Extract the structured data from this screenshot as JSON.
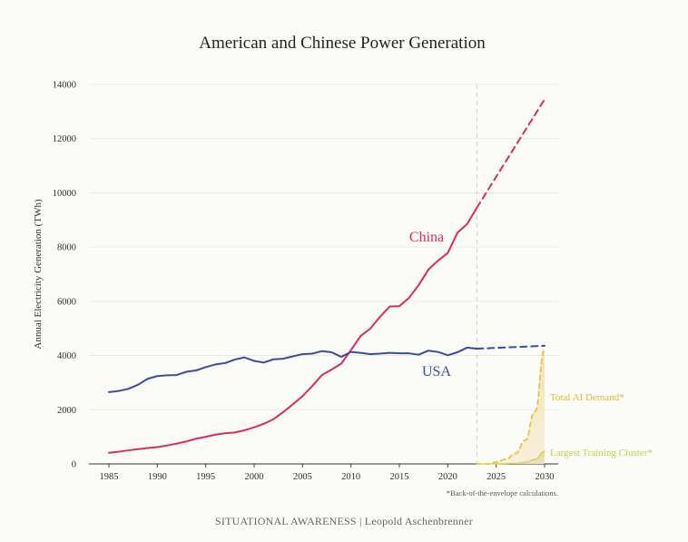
{
  "chart_data": {
    "type": "line",
    "title": "American and Chinese Power Generation",
    "xlabel": "",
    "ylabel": "Annual Electricity Generation (TWh)",
    "xlim": [
      1985,
      2030
    ],
    "ylim": [
      0,
      14000
    ],
    "x_ticks": [
      1985,
      1990,
      1995,
      2000,
      2005,
      2010,
      2015,
      2020,
      2025,
      2030
    ],
    "y_ticks": [
      0,
      2000,
      4000,
      6000,
      8000,
      10000,
      12000,
      14000
    ],
    "grid": "horizontal",
    "projection_start_year": 2023,
    "series": [
      {
        "name": "China",
        "label": "China",
        "color": "#d62e5c",
        "style": "solid",
        "x": [
          1985,
          1986,
          1987,
          1988,
          1989,
          1990,
          1991,
          1992,
          1993,
          1994,
          1995,
          1996,
          1997,
          1998,
          1999,
          2000,
          2001,
          2002,
          2003,
          2004,
          2005,
          2006,
          2007,
          2008,
          2009,
          2010,
          2011,
          2012,
          2013,
          2014,
          2015,
          2016,
          2017,
          2018,
          2019,
          2020,
          2021,
          2022,
          2023
        ],
        "values": [
          410,
          450,
          500,
          545,
          585,
          620,
          680,
          750,
          830,
          930,
          1000,
          1080,
          1130,
          1160,
          1240,
          1350,
          1480,
          1650,
          1910,
          2200,
          2500,
          2870,
          3280,
          3480,
          3700,
          4200,
          4720,
          4990,
          5430,
          5810,
          5820,
          6130,
          6600,
          7170,
          7500,
          7780,
          8530,
          8850,
          9450
        ]
      },
      {
        "name": "China projection",
        "label": "",
        "color": "#d62e5c",
        "style": "dashed",
        "x": [
          2023,
          2030
        ],
        "values": [
          9450,
          13450
        ]
      },
      {
        "name": "USA",
        "label": "USA",
        "color": "#3a4d9c",
        "style": "solid",
        "x": [
          1985,
          1986,
          1987,
          1988,
          1989,
          1990,
          1991,
          1992,
          1993,
          1994,
          1995,
          1996,
          1997,
          1998,
          1999,
          2000,
          2001,
          2002,
          2003,
          2004,
          2005,
          2006,
          2007,
          2008,
          2009,
          2010,
          2011,
          2012,
          2013,
          2014,
          2015,
          2016,
          2017,
          2018,
          2019,
          2020,
          2021,
          2022,
          2023
        ],
        "values": [
          2650,
          2690,
          2770,
          2920,
          3140,
          3240,
          3270,
          3280,
          3400,
          3450,
          3570,
          3670,
          3720,
          3850,
          3930,
          3800,
          3740,
          3860,
          3880,
          3970,
          4050,
          4070,
          4160,
          4120,
          3950,
          4130,
          4100,
          4050,
          4070,
          4100,
          4080,
          4080,
          4030,
          4180,
          4130,
          4010,
          4120,
          4290,
          4250
        ]
      },
      {
        "name": "USA projection",
        "label": "",
        "color": "#3a4d9c",
        "style": "dashed",
        "x": [
          2023,
          2030
        ],
        "values": [
          4250,
          4360
        ]
      },
      {
        "name": "Total AI Demand",
        "label": "Total AI Demand*",
        "color": "#e8c24a",
        "style": "dashed-area",
        "x": [
          2023,
          2024,
          2025,
          2026,
          2027,
          2028,
          2029,
          2030
        ],
        "values": [
          0,
          0,
          60,
          170,
          390,
          870,
          1930,
          4200
        ]
      },
      {
        "name": "Largest Training Cluster",
        "label": "Largest Training Cluster*",
        "color": "#c8d24a",
        "style": "dashed-area",
        "x": [
          2023,
          2024,
          2025,
          2026,
          2027,
          2028,
          2029,
          2030
        ],
        "values": [
          0,
          0,
          0,
          10,
          25,
          60,
          170,
          470
        ]
      }
    ],
    "series_labels": {
      "china": "China",
      "usa": "USA",
      "total_ai": "Total AI Demand*",
      "largest_cluster": "Largest Training Cluster*"
    },
    "footnote": "*Back-of-the-envelope calculations.",
    "credit": "SITUATIONAL AWARENESS | Leopold Aschenbrenner"
  }
}
